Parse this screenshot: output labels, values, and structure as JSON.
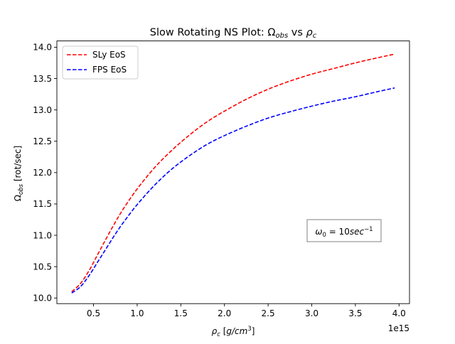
{
  "chart_data": {
    "type": "line",
    "title_main": "Slow Rotating NS Plot: ",
    "title_omega": "Ω",
    "title_omega_sub": "obs",
    "title_vs": " vs ",
    "title_rho": "ρ",
    "title_rho_sub": "c",
    "ylabel_omega": "Ω",
    "ylabel_omega_sub": "obs",
    "ylabel_unit": " [rot/sec]",
    "xlabel_rho": "ρ",
    "xlabel_rho_sub": "c",
    "xlabel_unit_open": " [",
    "xlabel_unit_g": "g/cm",
    "xlabel_unit_exp": "3",
    "xlabel_unit_close": "]",
    "x_offset_label": "1e15",
    "xlim": [
      0.08,
      4.12
    ],
    "ylim": [
      9.91,
      14.1
    ],
    "xticks": [
      0.5,
      1.0,
      1.5,
      2.0,
      2.5,
      3.0,
      3.5,
      4.0
    ],
    "xtick_labels": [
      "0.5",
      "1.0",
      "1.5",
      "2.0",
      "2.5",
      "3.0",
      "3.5",
      "4.0"
    ],
    "yticks": [
      10.0,
      10.5,
      11.0,
      11.5,
      12.0,
      12.5,
      13.0,
      13.5,
      14.0
    ],
    "ytick_labels": [
      "10.0",
      "10.5",
      "11.0",
      "11.5",
      "12.0",
      "12.5",
      "13.0",
      "13.5",
      "14.0"
    ],
    "grid": false,
    "legend_position": "top-left",
    "annotation": {
      "omega": "ω",
      "omega_sub": "0",
      "eq": " = 10",
      "unit": "sec",
      "unit_exp": "−1"
    },
    "series": [
      {
        "name": "SLy EoS",
        "color": "#ff0000",
        "style": "dashed",
        "x": [
          0.25,
          0.35,
          0.45,
          0.55,
          0.65,
          0.75,
          0.85,
          1.0,
          1.2,
          1.4,
          1.6,
          1.8,
          2.0,
          2.25,
          2.5,
          2.75,
          3.0,
          3.25,
          3.5,
          3.75,
          3.95
        ],
        "y": [
          10.1,
          10.23,
          10.44,
          10.7,
          10.96,
          11.21,
          11.44,
          11.74,
          12.08,
          12.36,
          12.6,
          12.81,
          12.98,
          13.17,
          13.33,
          13.46,
          13.57,
          13.66,
          13.75,
          13.83,
          13.89
        ]
      },
      {
        "name": "FPS EoS",
        "color": "#0000ff",
        "style": "dashed",
        "x": [
          0.25,
          0.35,
          0.45,
          0.55,
          0.65,
          0.75,
          0.85,
          1.0,
          1.2,
          1.4,
          1.6,
          1.8,
          2.0,
          2.25,
          2.5,
          2.75,
          3.0,
          3.25,
          3.5,
          3.75,
          3.95
        ],
        "y": [
          10.08,
          10.18,
          10.36,
          10.58,
          10.8,
          11.02,
          11.22,
          11.49,
          11.8,
          12.06,
          12.27,
          12.45,
          12.59,
          12.74,
          12.87,
          12.97,
          13.06,
          13.14,
          13.21,
          13.29,
          13.35
        ]
      }
    ]
  }
}
